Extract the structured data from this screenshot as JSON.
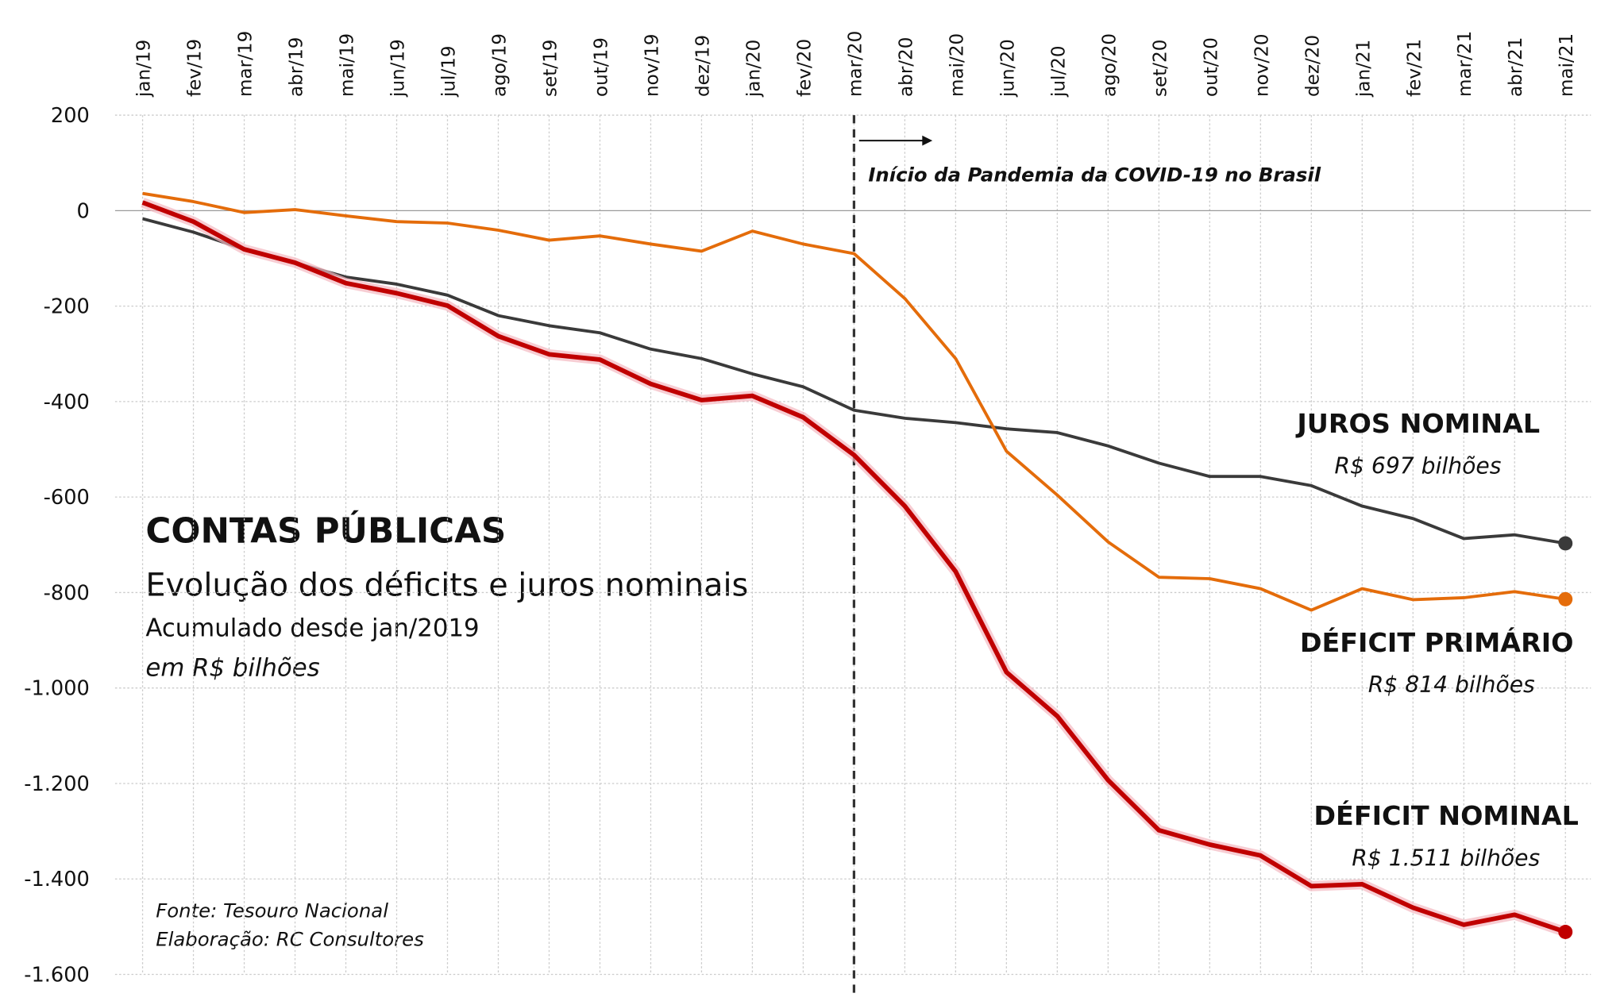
{
  "chart_data": {
    "type": "line",
    "title": "CONTAS PÚBLICAS",
    "subtitle": "Evolução dos déficits e juros nominais",
    "notes": [
      "Acumulado desde jan/2019",
      "em R$ bilhões"
    ],
    "source": [
      "Fonte: Tesouro Nacional",
      "Elaboração: RC Consultores"
    ],
    "annotation": {
      "text": "Início da Pandemia da COVID-19  no Brasil",
      "x": "mar/20"
    },
    "categories": [
      "jan/19",
      "fev/19",
      "mar/19",
      "abr/19",
      "mai/19",
      "jun/19",
      "jul/19",
      "ago/19",
      "set/19",
      "out/19",
      "nov/19",
      "dez/19",
      "jan/20",
      "fev/20",
      "mar/20",
      "abr/20",
      "mai/20",
      "jun/20",
      "jul/20",
      "ago/20",
      "set/20",
      "out/20",
      "nov/20",
      "dez/20",
      "jan/21",
      "fev/21",
      "mar/21",
      "abr/21",
      "mai/21"
    ],
    "ylim": [
      -1600,
      200
    ],
    "yticks": [
      200,
      0,
      -200,
      -400,
      -600,
      -800,
      {
        "value": -1000,
        "label": "-1.000"
      },
      {
        "value": -1200,
        "label": "-1.200"
      },
      {
        "value": -1400,
        "label": "-1.400"
      },
      {
        "value": -1600,
        "label": "-1.600"
      }
    ],
    "grid": true,
    "series": [
      {
        "name": "JUROS NOMINAL",
        "color": "#3a3a3a",
        "end_label": "R$ 697 bilhões",
        "values": [
          -17,
          -45,
          -81,
          -109,
          -139,
          -154,
          -177,
          -220,
          -241,
          -256,
          -290,
          -310,
          -342,
          -369,
          -418,
          -435,
          -444,
          -457,
          -465,
          -493,
          -529,
          -557,
          -557,
          -576,
          -619,
          -645,
          -687,
          -679,
          -697
        ]
      },
      {
        "name": "DÉFICIT PRIMÁRIO",
        "color": "#e46c0a",
        "end_label": "R$ 814 bilhões",
        "values": [
          36,
          19,
          -4,
          2,
          -11,
          -23,
          -26,
          -41,
          -62,
          -53,
          -70,
          -85,
          -43,
          -70,
          -90,
          -184,
          -310,
          -504,
          -596,
          -694,
          -768,
          -771,
          -792,
          -837,
          -792,
          -815,
          -811,
          -798,
          -814
        ]
      },
      {
        "name": "DÉFICIT NOMINAL",
        "color": "#c00000",
        "end_label": "R$ 1.511 bilhões",
        "values": [
          17,
          -23,
          -81,
          -109,
          -152,
          -173,
          -199,
          -263,
          -301,
          -312,
          -363,
          -397,
          -388,
          -433,
          -512,
          -619,
          -756,
          -967,
          -1059,
          -1193,
          -1298,
          -1328,
          -1351,
          -1415,
          -1411,
          -1460,
          -1496,
          -1475,
          -1511
        ]
      }
    ]
  }
}
